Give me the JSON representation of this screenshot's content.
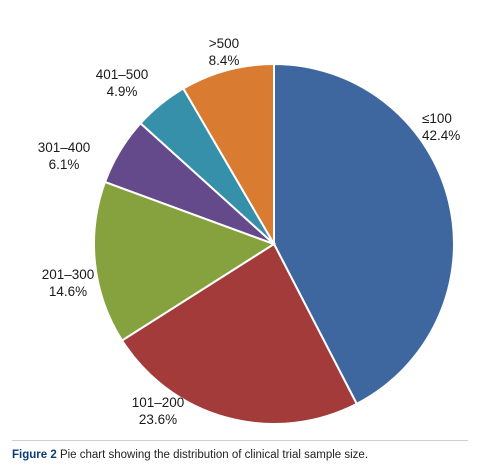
{
  "chart_data": {
    "type": "pie",
    "categories": [
      "≤100",
      "101–200",
      "201–300",
      "301–400",
      "401–500",
      ">500"
    ],
    "values": [
      42.4,
      23.6,
      14.6,
      6.1,
      4.9,
      8.4
    ],
    "value_labels": [
      "42.4%",
      "23.6%",
      "14.6%",
      "6.1%",
      "4.9%",
      "8.4%"
    ],
    "colors": [
      "#3e67a0",
      "#a33b3a",
      "#86a23f",
      "#644a8a",
      "#3690aa",
      "#d97b30"
    ],
    "legend": "none (labels outside slices)"
  },
  "caption": {
    "lead": "Figure 2",
    "text": "Pie chart showing the distribution of clinical trial sample size."
  }
}
